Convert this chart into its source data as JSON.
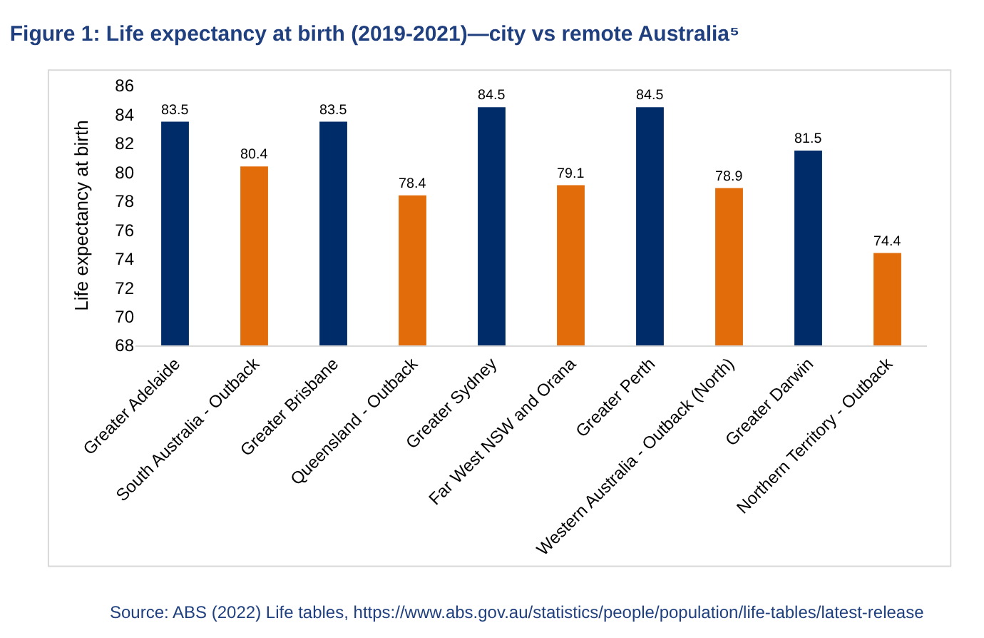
{
  "chart_data": {
    "type": "bar",
    "title": "Figure 1: Life expectancy at birth (2019-2021)—city vs remote Australia⁵",
    "ylabel": "Life expectancy at birth",
    "categories": [
      "Greater Adelaide",
      "South Australia - Outback",
      "Greater Brisbane",
      "Queensland - Outback",
      "Greater Sydney",
      "Far West NSW and Orana",
      "Greater Perth",
      "Western Australia - Outback (North)",
      "Greater Darwin",
      "Northern Territory - Outback"
    ],
    "values": [
      83.5,
      80.4,
      83.5,
      78.4,
      84.5,
      79.1,
      84.5,
      78.9,
      81.5,
      74.4
    ],
    "colors": [
      "#002d6a",
      "#e36c0a",
      "#002d6a",
      "#e36c0a",
      "#002d6a",
      "#e36c0a",
      "#002d6a",
      "#e36c0a",
      "#002d6a",
      "#e36c0a"
    ],
    "ylim": [
      68,
      86
    ],
    "yticks": [
      68,
      70,
      72,
      74,
      76,
      78,
      80,
      82,
      84,
      86
    ],
    "data_labels": true,
    "annotations": [
      "Source: ABS (2022) Life tables, https://www.abs.gov.au/statistics/people/population/life-tables/latest-release"
    ]
  }
}
